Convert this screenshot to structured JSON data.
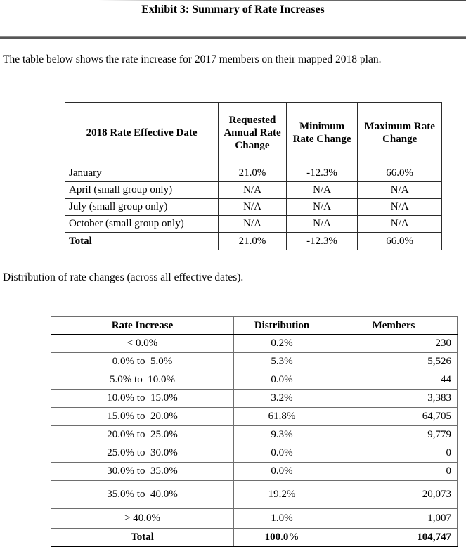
{
  "page": {
    "title": "Exhibit 3: Summary of Rate Increases",
    "intro_text": "The table below shows the rate increase for 2017 members on their mapped 2018 plan.",
    "distribution_text": "Distribution of rate changes (across all effective dates)."
  },
  "rate_table": {
    "headers": [
      "2018 Rate Effective Date",
      "Requested Annual Rate Change",
      "Minimum Rate Change",
      "Maximum Rate Change"
    ],
    "rows": [
      [
        "January",
        "21.0%",
        "-12.3%",
        "66.0%"
      ],
      [
        "April (small group only)",
        "N/A",
        "N/A",
        "N/A"
      ],
      [
        "July (small group only)",
        "N/A",
        "N/A",
        "N/A"
      ],
      [
        "October (small group only)",
        "N/A",
        "N/A",
        "N/A"
      ]
    ],
    "total_row": [
      "Total",
      "21.0%",
      "-12.3%",
      "66.0%"
    ]
  },
  "distribution_table": {
    "headers": [
      "Rate Increase",
      "Distribution",
      "Members"
    ],
    "rows": [
      [
        "< 0.0%",
        "0.2%",
        "230"
      ],
      [
        "0.0% to  5.0%",
        "5.3%",
        "5,526"
      ],
      [
        "5.0% to  10.0%",
        "0.0%",
        "44"
      ],
      [
        "10.0% to  15.0%",
        "3.2%",
        "3,383"
      ],
      [
        "15.0% to  20.0%",
        "61.8%",
        "64,705"
      ],
      [
        "20.0% to  25.0%",
        "9.3%",
        "9,779"
      ],
      [
        "25.0% to  30.0%",
        "0.0%",
        "0"
      ],
      [
        "30.0% to  35.0%",
        "0.0%",
        "0"
      ],
      [
        "35.0% to  40.0%",
        "19.2%",
        "20,073"
      ],
      [
        "> 40.0%",
        "1.0%",
        "1,007"
      ]
    ],
    "total_row": [
      "Total",
      "100.0%",
      "104,747"
    ]
  }
}
